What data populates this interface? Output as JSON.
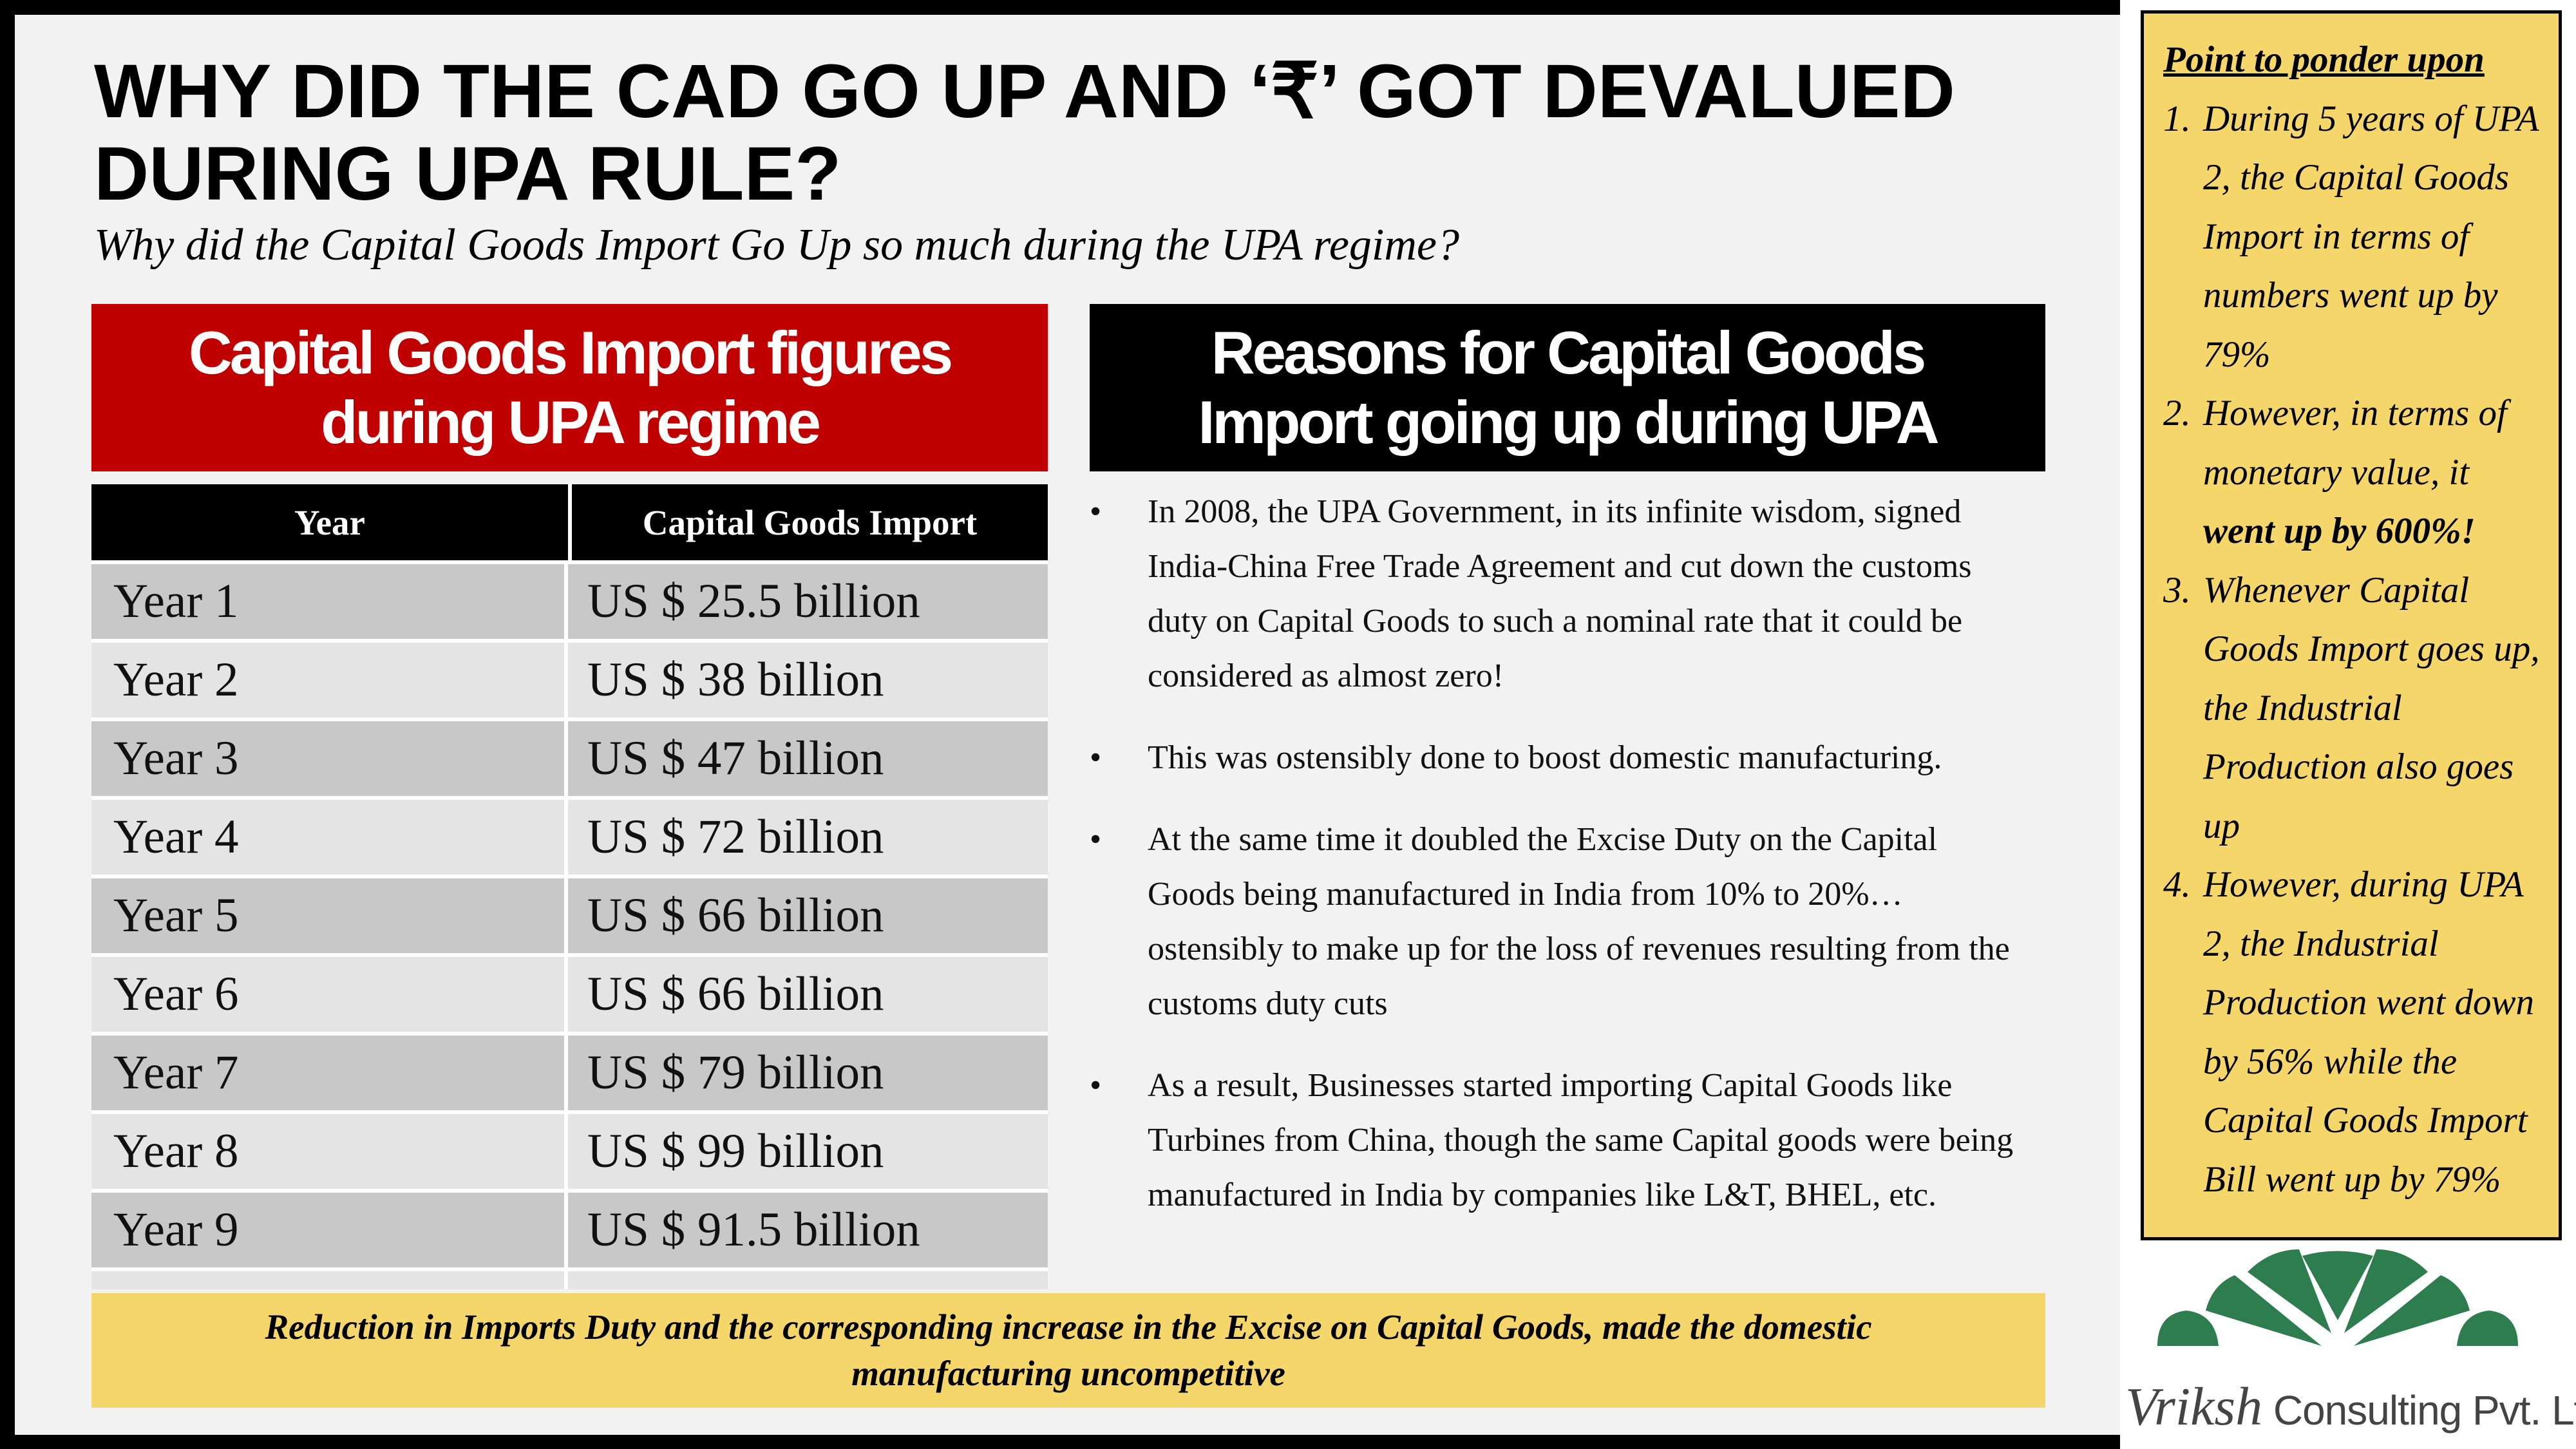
{
  "title": "WHY DID THE CAD GO UP AND ‘₹’ GOT DEVALUED DURING UPA RULE?",
  "subtitle": "Why did the Capital Goods Import Go Up so much during the UPA regime?",
  "left_header": "Capital Goods Import figures\nduring UPA regime",
  "right_header": "Reasons for Capital Goods\nImport going up during UPA",
  "table": {
    "columns": [
      "Year",
      "Capital Goods Import"
    ],
    "rows": [
      [
        "Year 1",
        "US $ 25.5 billion"
      ],
      [
        "Year 2",
        "US $ 38 billion"
      ],
      [
        "Year 3",
        "US $ 47 billion"
      ],
      [
        "Year 4",
        "US $ 72 billion"
      ],
      [
        "Year 5",
        "US $ 66 billion"
      ],
      [
        "Year 6",
        "US $ 66 billion"
      ],
      [
        "Year 7",
        "US $ 79 billion"
      ],
      [
        "Year 8",
        "US $ 99 billion"
      ],
      [
        "Year 9",
        "US $ 91.5 billion"
      ]
    ]
  },
  "bullet_glyph": "•",
  "reasons": [
    "In 2008, the UPA Government, in its infinite wisdom, signed India-China Free Trade Agreement and cut down the customs duty on Capital Goods to such a nominal rate that it could be considered as almost zero!",
    "This was ostensibly done to boost domestic manufacturing.",
    "At the same time it doubled the Excise Duty on the Capital Goods being manufactured in India from 10% to 20%… ostensibly to make up for the loss of revenues resulting from the customs duty cuts",
    "As a result, Businesses started importing Capital Goods like Turbines from China, though the same Capital goods were being manufactured in India by companies like L&T, BHEL, etc."
  ],
  "banner": "Reduction in Imports Duty and the corresponding increase in the Excise on Capital Goods, made the domestic manufacturing uncompetitive",
  "ponder": {
    "title": "Point to ponder upon",
    "points": [
      {
        "num": "1.",
        "text": "During 5 years of UPA 2, the Capital Goods Import in terms of numbers went up by 79%",
        "bold": ""
      },
      {
        "num": "2.",
        "text": "However, in terms of monetary value, it ",
        "bold": "went up by 600%!"
      },
      {
        "num": "3.",
        "text": "Whenever Capital Goods Import goes up, the Industrial Production also goes up",
        "bold": ""
      },
      {
        "num": "4.",
        "text": "However, during UPA 2, the Industrial Production went down by 56% while the Capital Goods Import Bill went up by 79%",
        "bold": ""
      }
    ]
  },
  "logo": {
    "name": "Vriksh",
    "rest": " Consulting Pvt. Ltd",
    "color": "#2e7d4f"
  }
}
